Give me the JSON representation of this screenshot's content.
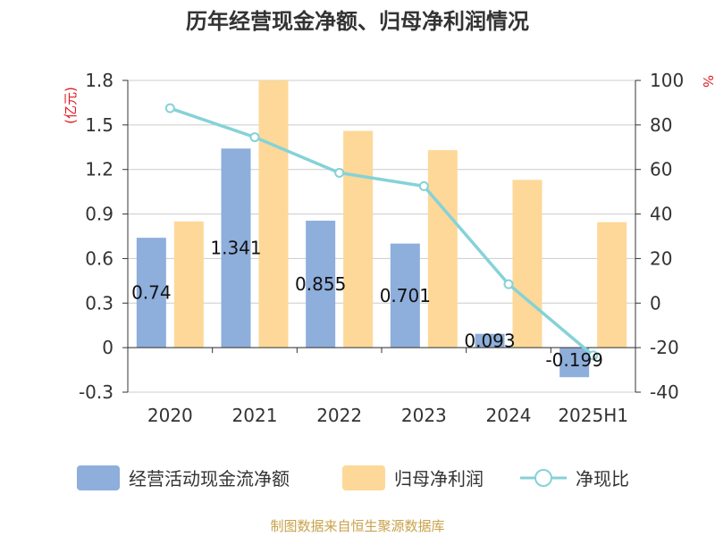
{
  "chart_data": {
    "type": "bar",
    "title": "历年经营现金净额、归母净利润情况",
    "categories": [
      "2020",
      "2021",
      "2022",
      "2023",
      "2024",
      "2025H1"
    ],
    "left_axis": {
      "unit_label": "(亿元)",
      "ylim": [
        -0.3,
        1.8
      ],
      "ticks": [
        "1.8",
        "1.5",
        "1.2",
        "0.9",
        "0.6",
        "0.3",
        "0",
        "-0.3"
      ],
      "tick_values": [
        1.8,
        1.5,
        1.2,
        0.9,
        0.6,
        0.3,
        0,
        -0.3
      ]
    },
    "right_axis": {
      "unit_label": "%",
      "ylim": [
        -40,
        100
      ],
      "ticks": [
        "100",
        "80",
        "60",
        "40",
        "20",
        "0",
        "-20",
        "-40"
      ],
      "tick_values": [
        100,
        80,
        60,
        40,
        20,
        0,
        -20,
        -40
      ]
    },
    "series": [
      {
        "name": "经营活动现金流净额",
        "type": "bar",
        "axis": "left",
        "color": "#8eaedb",
        "values": [
          0.74,
          1.341,
          0.855,
          0.701,
          0.093,
          -0.199
        ],
        "labels": [
          "0.74",
          "1.341",
          "0.855",
          "0.701",
          "0.093",
          "-0.199"
        ]
      },
      {
        "name": "归母净利润",
        "type": "bar",
        "axis": "left",
        "color": "#fdd898",
        "values": [
          0.85,
          1.8,
          1.46,
          1.33,
          1.13,
          0.845
        ]
      },
      {
        "name": "净现比",
        "type": "line",
        "axis": "right",
        "color": "#85d2d8",
        "values": [
          87.5,
          74.5,
          58.5,
          52.5,
          8.5,
          -23.5
        ]
      }
    ],
    "grid": true,
    "legend_position": "bottom"
  },
  "source": "制图数据来自恒生聚源数据库"
}
